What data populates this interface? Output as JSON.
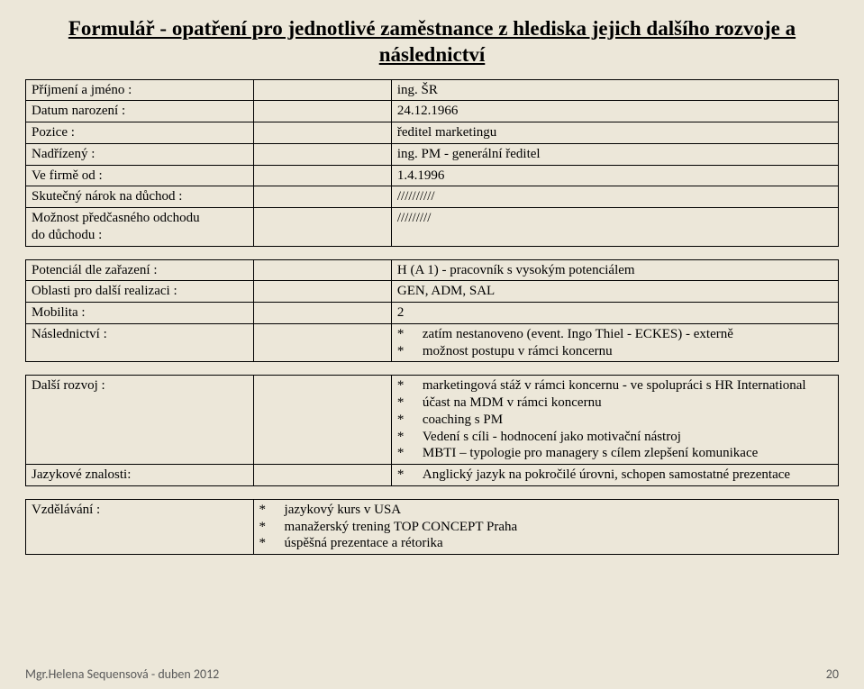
{
  "title_line1": "Formulář -  opatření pro jednotlivé zaměstnance z hlediska jejich dalšího rozvoje a",
  "title_line2": "následnictví",
  "tableA": {
    "rows": [
      {
        "label": "Příjmení a jméno :",
        "value": "ing. ŠR"
      },
      {
        "label": "Datum narození :",
        "value": "24.12.1966"
      },
      {
        "label": "Pozice :",
        "value": "ředitel marketingu"
      },
      {
        "label": "Nadřízený :",
        "value": "ing. PM - generální ředitel"
      },
      {
        "label": "Ve firmě od :",
        "value": "1.4.1996"
      },
      {
        "label": "Skutečný nárok na důchod :",
        "value": "//////////"
      },
      {
        "label": "Možnost předčasného odchodu\ndo důchodu :",
        "value": "/////////"
      }
    ]
  },
  "tableB": {
    "rows": [
      {
        "label": "Potenciál dle zařazení :",
        "value": "H (A 1) - pracovník s vysokým potenciálem"
      },
      {
        "label": "Oblasti pro další realizaci :",
        "value": "GEN, ADM, SAL"
      },
      {
        "label": "Mobilita :",
        "value": "2"
      },
      {
        "label": "Následnictví :",
        "bullets": [
          "zatím nestanoveno (event. Ingo Thiel - ECKES) - externě",
          "možnost postupu v rámci koncernu"
        ]
      }
    ]
  },
  "tableC": {
    "rows": [
      {
        "label": "Další rozvoj :",
        "bullets": [
          "marketingová stáž  v rámci koncernu - ve spolupráci s HR International",
          "účast na MDM v rámci koncernu",
          "coaching s PM",
          "Vedení s cíli - hodnocení jako motivační nástroj",
          "MBTI – typologie pro managery  s cílem zlepšení komunikace"
        ],
        "bullet_wrap_first": true
      },
      {
        "label": "Jazykové znalosti:",
        "bullets": [
          "Anglický jazyk na pokročilé úrovni, schopen samostatné prezentace"
        ]
      }
    ]
  },
  "tableD": {
    "rows": [
      {
        "label": "Vzdělávání :",
        "bullets": [
          "jazykový kurs v USA",
          "manažerský trening TOP CONCEPT Praha",
          "úspěšná prezentace a rétorika"
        ]
      }
    ]
  },
  "footer": {
    "author": "Mgr.Helena Sequensová -  duben 2012",
    "page": "20"
  }
}
